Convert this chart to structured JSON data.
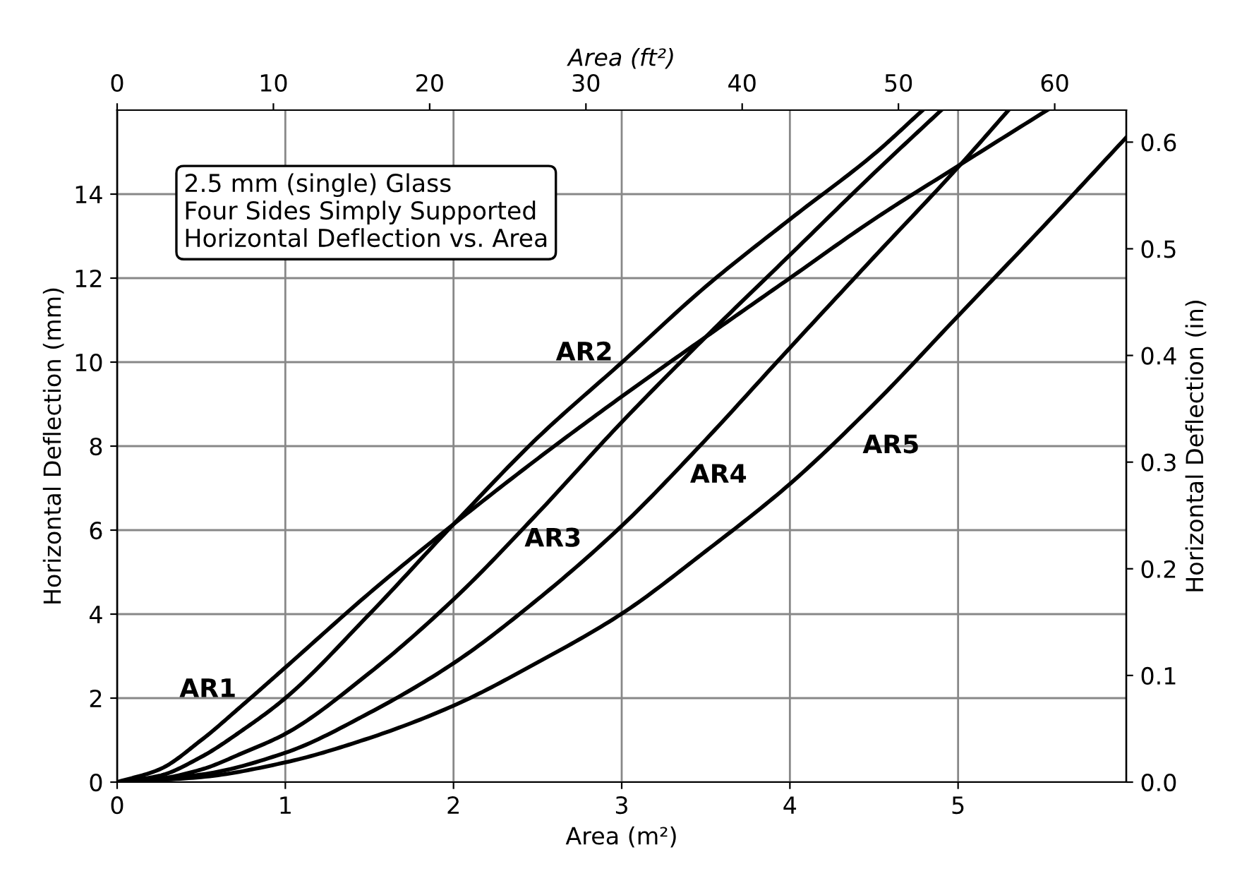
{
  "chart_data": {
    "type": "line",
    "xlabel": "Area (m²)",
    "ylabel": "Horizontal Deflection (mm)",
    "y2label": "Horizontal Deflection (in)",
    "x2label": "Area (ft²)",
    "xlim": [
      0,
      6.0
    ],
    "xticks": [
      0,
      1,
      2,
      3,
      4,
      5
    ],
    "ylim": [
      0,
      16
    ],
    "yticks": [
      0,
      2,
      4,
      6,
      8,
      10,
      12,
      14
    ],
    "x2lim": [
      0,
      64.58
    ],
    "x2ticks": [
      0,
      10,
      20,
      30,
      40,
      50,
      60
    ],
    "y2lim": [
      0,
      0.63
    ],
    "y2ticks": [
      {
        "value": 0,
        "label": "0.0"
      },
      {
        "value": 0.1,
        "label": "0.1"
      },
      {
        "value": 0.2,
        "label": "0.2"
      },
      {
        "value": 0.3,
        "label": "0.3"
      },
      {
        "value": 0.4,
        "label": "0.4"
      },
      {
        "value": 0.5,
        "label": "0.5"
      },
      {
        "value": 0.6,
        "label": "0.6"
      }
    ],
    "grid": true,
    "marker": "none",
    "line_style": "solid",
    "series": [
      {
        "color": "#000000",
        "x": [
          0,
          0.25,
          0.5,
          0.75,
          1,
          1.5,
          2,
          2.5,
          3,
          3.5,
          4,
          4.5,
          5,
          5.53
        ],
        "values": [
          0,
          0.3,
          1.0,
          1.85,
          2.73,
          4.5,
          6.14,
          7.7,
          9.18,
          10.6,
          12.0,
          13.4,
          14.67,
          16.0
        ]
      },
      {
        "color": "#000000",
        "x": [
          0,
          0.25,
          0.5,
          0.75,
          1,
          1.5,
          2,
          2.5,
          3,
          3.5,
          4,
          4.5,
          4.79
        ],
        "values": [
          0,
          0.15,
          0.6,
          1.25,
          2.0,
          4.0,
          6.14,
          8.2,
          9.99,
          11.8,
          13.4,
          14.95,
          16.0
        ]
      },
      {
        "color": "#000000",
        "x": [
          0,
          0.25,
          0.5,
          0.75,
          1,
          1.5,
          2,
          2.5,
          3,
          3.5,
          4,
          4.5,
          4.9
        ],
        "values": [
          0,
          0.08,
          0.3,
          0.7,
          1.15,
          2.6,
          4.35,
          6.4,
          8.57,
          10.6,
          12.55,
          14.5,
          16.0
        ]
      },
      {
        "color": "#000000",
        "x": [
          0,
          0.5,
          1,
          1.5,
          2,
          2.5,
          3,
          3.44,
          4,
          4.5,
          5,
          5.3
        ],
        "values": [
          0,
          0.18,
          0.7,
          1.65,
          2.83,
          4.35,
          6.1,
          7.9,
          10.34,
          12.5,
          14.64,
          16.0
        ]
      },
      {
        "color": "#000000",
        "x": [
          0,
          0.5,
          1,
          1.5,
          2,
          2.5,
          3,
          3.5,
          4,
          4.5,
          5,
          5.5,
          6.0
        ],
        "values": [
          0,
          0.12,
          0.47,
          1.05,
          1.82,
          2.85,
          4.01,
          5.5,
          7.1,
          9.0,
          11.1,
          13.2,
          15.35
        ]
      }
    ],
    "annotations": [
      "2.5 mm (single) Glass\nFour Sides Simply Supported\nHorizontal Deflection vs. Area",
      "AR1",
      "AR2",
      "AR3",
      "AR4",
      "AR5"
    ]
  }
}
